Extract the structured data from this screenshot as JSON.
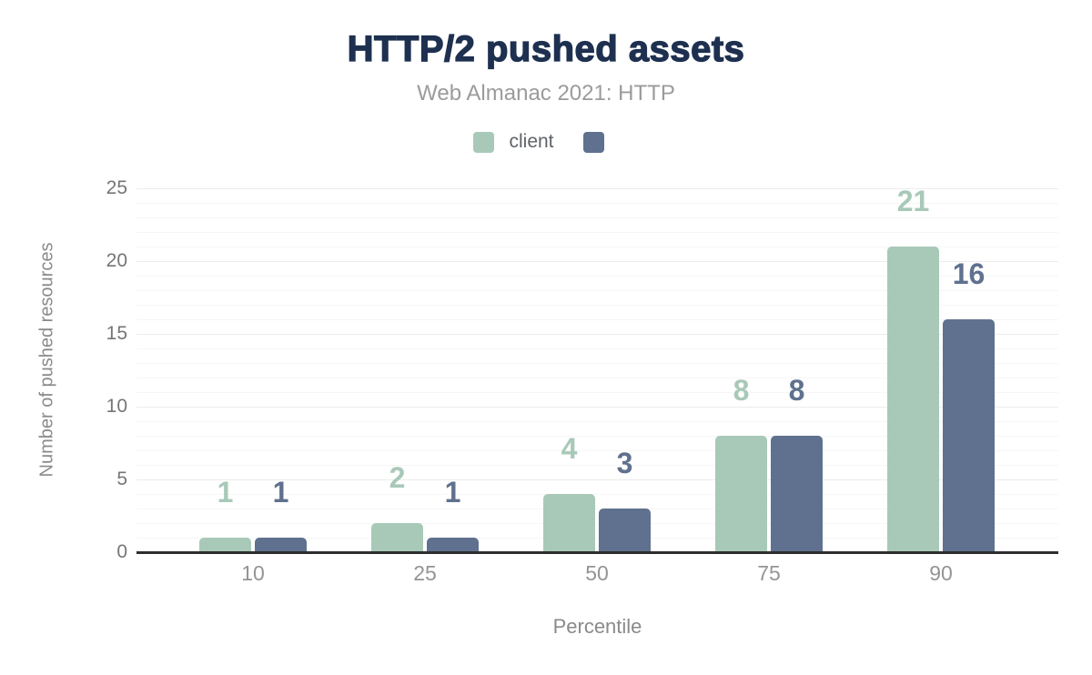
{
  "title": "HTTP/2 pushed assets",
  "subtitle": "Web Almanac 2021: HTTP",
  "legend": {
    "items": [
      {
        "label": "client",
        "color": "#a8c9b8"
      },
      {
        "label": "",
        "color": "#5f718e"
      }
    ]
  },
  "colors": {
    "title_navy": "#1e3050",
    "series_green": "#a8c9b8",
    "series_slate": "#5f718e",
    "axis_line": "#2e2e2e",
    "tick_gray": "#757575"
  },
  "chart_data": {
    "type": "bar",
    "title": "HTTP/2 pushed assets",
    "subtitle": "Web Almanac 2021: HTTP",
    "categories": [
      "10",
      "25",
      "50",
      "75",
      "90"
    ],
    "series": [
      {
        "name": "client",
        "color": "#a8c9b8",
        "values": [
          1,
          2,
          4,
          8,
          21
        ]
      },
      {
        "name": "",
        "color": "#5f718e",
        "values": [
          1,
          1,
          3,
          8,
          16
        ]
      }
    ],
    "xlabel": "Percentile",
    "ylabel": "Number of pushed resources",
    "ylim": [
      0,
      25
    ],
    "yticks": [
      0,
      5,
      10,
      15,
      20,
      25
    ],
    "grid": "horizontal, minor line each unit, major line each 5 units",
    "legend_position": "top",
    "bar_value_labels": true
  }
}
